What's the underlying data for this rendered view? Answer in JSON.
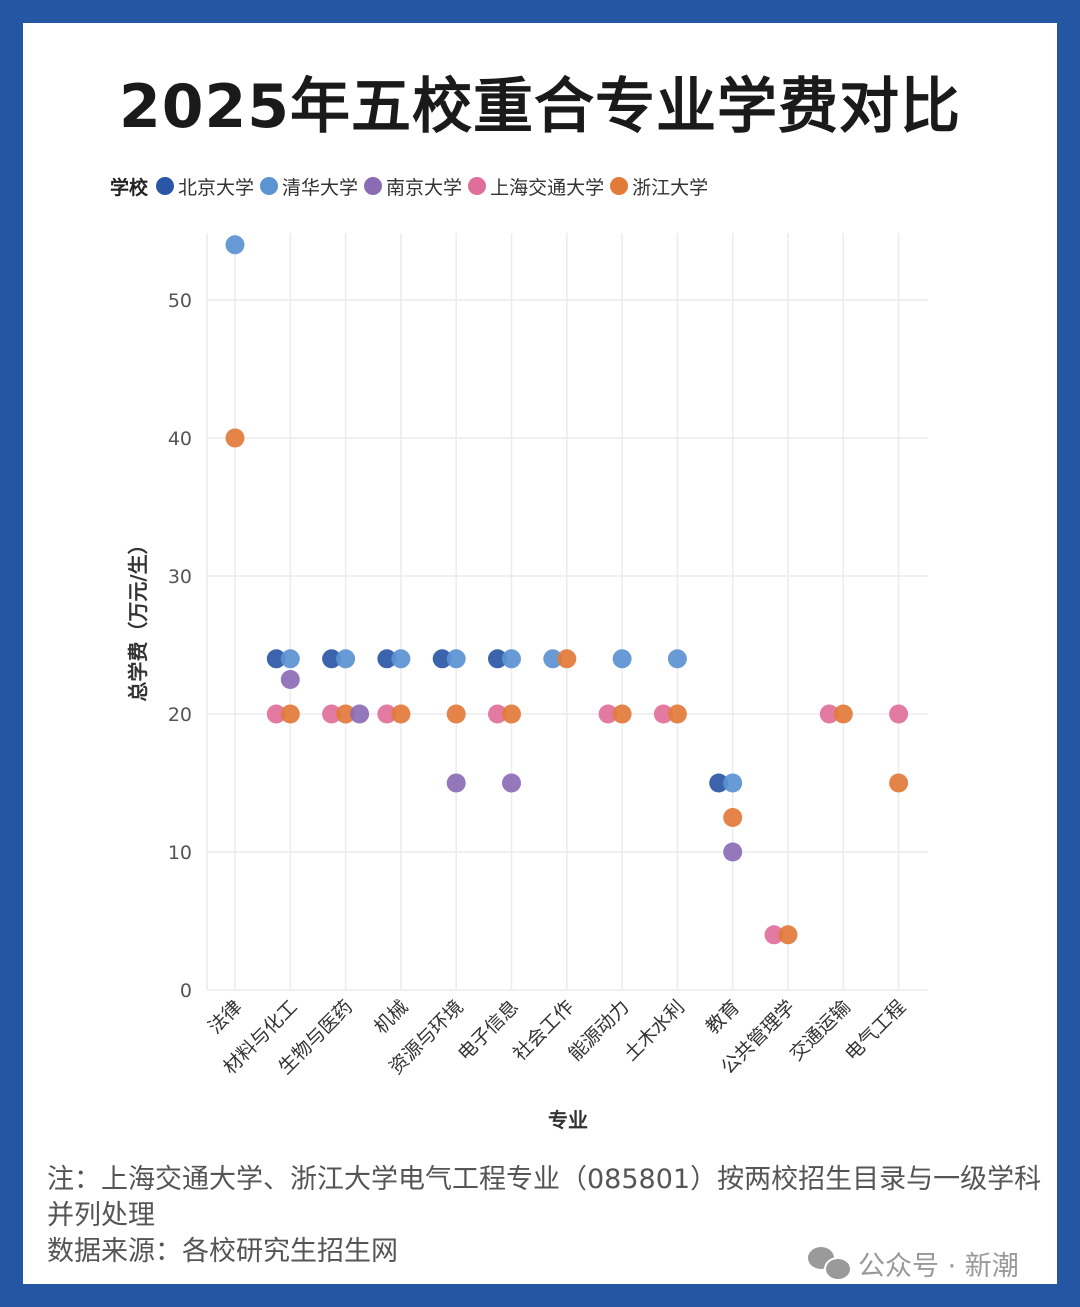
{
  "title": "2025年五校重合专业学费对比",
  "legend": {
    "title": "学校",
    "items": [
      {
        "name": "北京大学",
        "color": "#2a57a5"
      },
      {
        "name": "清华大学",
        "color": "#5b93d3"
      },
      {
        "name": "南京大学",
        "color": "#8c6bb5"
      },
      {
        "name": "上海交通大学",
        "color": "#df6f9a"
      },
      {
        "name": "浙江大学",
        "color": "#e27a3a"
      }
    ]
  },
  "chart_data": {
    "type": "scatter",
    "title": "2025年五校重合专业学费对比",
    "xlabel": "专业",
    "ylabel": "总学费（万元/生）",
    "ylim": [
      0,
      55
    ],
    "yticks": [
      0,
      10,
      20,
      30,
      40,
      50
    ],
    "grid": true,
    "legend_position": "top-left",
    "categories": [
      "法律",
      "材料与化工",
      "生物与医药",
      "机械",
      "资源与环境",
      "电子信息",
      "社会工作",
      "能源动力",
      "土木水利",
      "教育",
      "公共管理学",
      "交通运输",
      "电气工程"
    ],
    "series": [
      {
        "name": "北京大学",
        "color": "#2a57a5",
        "points": [
          {
            "category": "材料与化工",
            "value": 24
          },
          {
            "category": "生物与医药",
            "value": 24
          },
          {
            "category": "机械",
            "value": 24
          },
          {
            "category": "资源与环境",
            "value": 24
          },
          {
            "category": "电子信息",
            "value": 24
          },
          {
            "category": "教育",
            "value": 15
          }
        ]
      },
      {
        "name": "清华大学",
        "color": "#5b93d3",
        "points": [
          {
            "category": "法律",
            "value": 54
          },
          {
            "category": "材料与化工",
            "value": 24
          },
          {
            "category": "生物与医药",
            "value": 24
          },
          {
            "category": "机械",
            "value": 24
          },
          {
            "category": "资源与环境",
            "value": 24
          },
          {
            "category": "电子信息",
            "value": 24
          },
          {
            "category": "社会工作",
            "value": 24
          },
          {
            "category": "能源动力",
            "value": 24
          },
          {
            "category": "土木水利",
            "value": 24
          },
          {
            "category": "教育",
            "value": 15
          }
        ]
      },
      {
        "name": "南京大学",
        "color": "#8c6bb5",
        "points": [
          {
            "category": "材料与化工",
            "value": 22.5
          },
          {
            "category": "生物与医药",
            "value": 20
          },
          {
            "category": "资源与环境",
            "value": 15
          },
          {
            "category": "电子信息",
            "value": 15
          },
          {
            "category": "教育",
            "value": 10
          }
        ]
      },
      {
        "name": "上海交通大学",
        "color": "#df6f9a",
        "points": [
          {
            "category": "材料与化工",
            "value": 20
          },
          {
            "category": "生物与医药",
            "value": 20
          },
          {
            "category": "机械",
            "value": 20
          },
          {
            "category": "电子信息",
            "value": 20
          },
          {
            "category": "能源动力",
            "value": 20
          },
          {
            "category": "土木水利",
            "value": 20
          },
          {
            "category": "公共管理学",
            "value": 4
          },
          {
            "category": "交通运输",
            "value": 20
          },
          {
            "category": "电气工程",
            "value": 20
          }
        ]
      },
      {
        "name": "浙江大学",
        "color": "#e27a3a",
        "points": [
          {
            "category": "法律",
            "value": 40
          },
          {
            "category": "材料与化工",
            "value": 20
          },
          {
            "category": "生物与医药",
            "value": 20
          },
          {
            "category": "机械",
            "value": 20
          },
          {
            "category": "资源与环境",
            "value": 20
          },
          {
            "category": "电子信息",
            "value": 20
          },
          {
            "category": "社会工作",
            "value": 24
          },
          {
            "category": "能源动力",
            "value": 20
          },
          {
            "category": "土木水利",
            "value": 20
          },
          {
            "category": "教育",
            "value": 12.5
          },
          {
            "category": "公共管理学",
            "value": 4
          },
          {
            "category": "交通运输",
            "value": 20
          },
          {
            "category": "电气工程",
            "value": 15
          }
        ]
      }
    ]
  },
  "notes": {
    "note": "注：上海交通大学、浙江大学电气工程专业（085801）按两校招生目录与一级学科并列处理",
    "source": "数据来源：各校研究生招生网"
  },
  "watermark": "公众号 · 新潮"
}
